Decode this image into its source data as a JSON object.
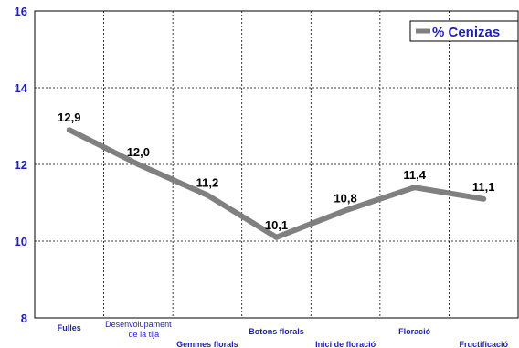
{
  "chart_data": {
    "type": "line",
    "categories": [
      "Fulles",
      "Desenvolupament de la tija",
      "Gemmes florals",
      "Botons florals",
      "Inici de floració",
      "Floració",
      "Fructificació"
    ],
    "series": [
      {
        "name": "% Cenizas",
        "values": [
          12.9,
          12.0,
          11.2,
          10.1,
          10.8,
          11.4,
          11.1
        ],
        "labels": [
          "12,9",
          "12,0",
          "11,2",
          "10,1",
          "10,8",
          "11,4",
          "11,1"
        ],
        "color": "#808080"
      }
    ],
    "ylim": [
      8,
      16
    ],
    "yticks": [
      "8",
      "10",
      "12",
      "14",
      "16"
    ],
    "grid": true,
    "legend": "top-right",
    "title": "",
    "xlabel": "",
    "ylabel": ""
  },
  "colors": {
    "axis_text": "#1f1fb4",
    "line": "#808080",
    "grid": "#000000"
  }
}
